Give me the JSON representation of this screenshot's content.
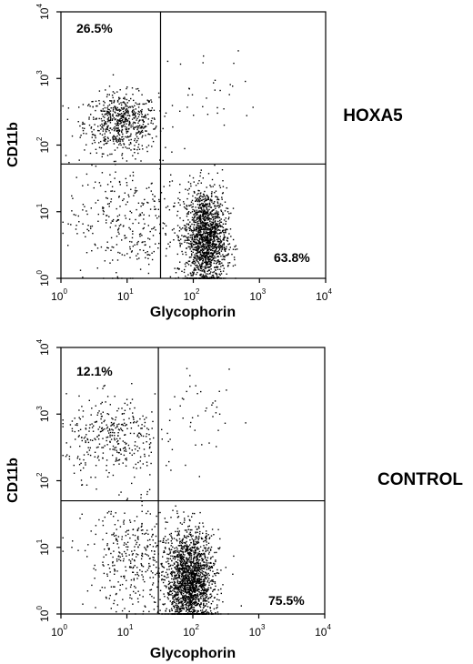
{
  "chart_data": [
    {
      "type": "scatter",
      "title": "",
      "condition_label": "HOXA5",
      "xlabel": "Glycophorin",
      "ylabel": "CD11b",
      "x_scale": "log",
      "y_scale": "log",
      "xlim": [
        1,
        10000
      ],
      "ylim": [
        1,
        10000
      ],
      "x_ticks": [
        {
          "base": "10",
          "exp": "0"
        },
        {
          "base": "10",
          "exp": "1"
        },
        {
          "base": "10",
          "exp": "2"
        },
        {
          "base": "10",
          "exp": "3"
        },
        {
          "base": "10",
          "exp": "4"
        }
      ],
      "y_ticks": [
        {
          "base": "10",
          "exp": "0"
        },
        {
          "base": "10",
          "exp": "1"
        },
        {
          "base": "10",
          "exp": "2"
        },
        {
          "base": "10",
          "exp": "3"
        },
        {
          "base": "10",
          "exp": "4"
        }
      ],
      "gate_x": 32,
      "gate_y": 52,
      "quadrant_percentages": {
        "upper_left": "26.5%",
        "lower_right": "63.8%"
      },
      "populations": [
        {
          "center": [
            8,
            220
          ],
          "spread_log": [
            0.28,
            0.22
          ],
          "count": 620
        },
        {
          "center": [
            150,
            4
          ],
          "spread_log": [
            0.16,
            0.38
          ],
          "count": 1550
        },
        {
          "center": [
            10,
            8
          ],
          "spread_log": [
            0.45,
            0.45
          ],
          "count": 330
        },
        {
          "center": [
            200,
            600
          ],
          "spread_log": [
            0.35,
            0.35
          ],
          "count": 30
        }
      ],
      "grid": false,
      "legend": "none"
    },
    {
      "type": "scatter",
      "title": "",
      "condition_label": "CONTROL",
      "xlabel": "Glycophorin",
      "ylabel": "CD11b",
      "x_scale": "log",
      "y_scale": "log",
      "xlim": [
        1,
        10000
      ],
      "ylim": [
        1,
        10000
      ],
      "x_ticks": [
        {
          "base": "10",
          "exp": "0"
        },
        {
          "base": "10",
          "exp": "1"
        },
        {
          "base": "10",
          "exp": "2"
        },
        {
          "base": "10",
          "exp": "3"
        },
        {
          "base": "10",
          "exp": "4"
        }
      ],
      "y_ticks": [
        {
          "base": "10",
          "exp": "0"
        },
        {
          "base": "10",
          "exp": "1"
        },
        {
          "base": "10",
          "exp": "2"
        },
        {
          "base": "10",
          "exp": "3"
        },
        {
          "base": "10",
          "exp": "4"
        }
      ],
      "gate_x": 30,
      "gate_y": 50,
      "quadrant_percentages": {
        "upper_left": "12.1%",
        "lower_right": "75.5%"
      },
      "populations": [
        {
          "center": [
            6,
            450
          ],
          "spread_log": [
            0.35,
            0.3
          ],
          "count": 360
        },
        {
          "center": [
            90,
            3
          ],
          "spread_log": [
            0.18,
            0.38
          ],
          "count": 1850
        },
        {
          "center": [
            15,
            7
          ],
          "spread_log": [
            0.4,
            0.4
          ],
          "count": 420
        },
        {
          "center": [
            150,
            900
          ],
          "spread_log": [
            0.25,
            0.3
          ],
          "count": 40
        }
      ],
      "grid": false,
      "legend": "none"
    }
  ]
}
